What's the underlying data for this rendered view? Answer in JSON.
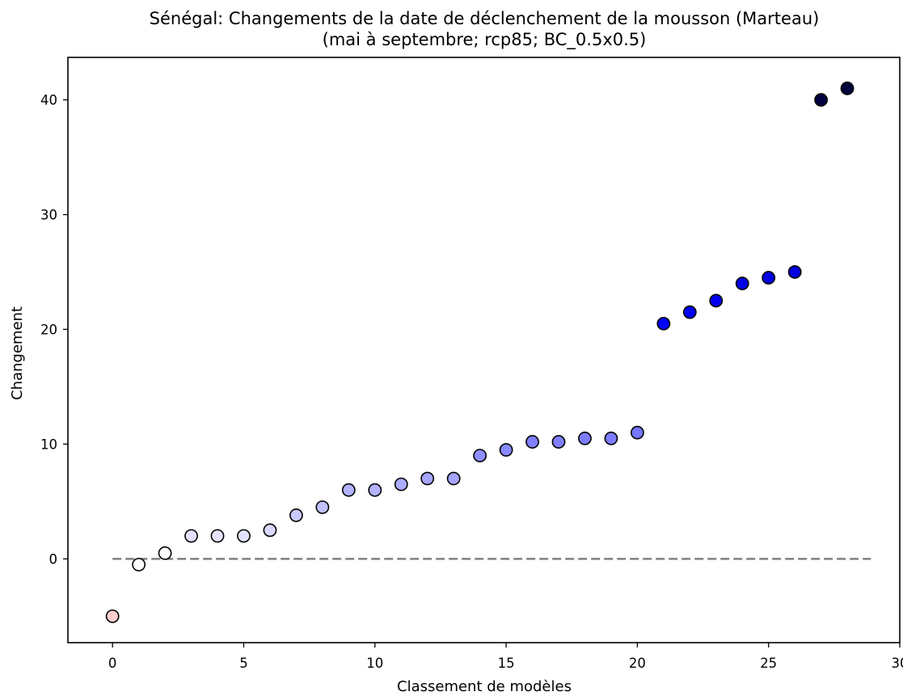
{
  "chart_data": {
    "type": "scatter",
    "title": "Sénégal: Changements de la date de déclenchement de la mousson (Marteau)",
    "subtitle": "(mai à septembre; rcp85; BC_0.5x0.5)",
    "xlabel": "Classement de modèles",
    "ylabel": "Changement",
    "xlim": [
      -1.7,
      30.0
    ],
    "ylim": [
      -7.3,
      43.7
    ],
    "xticks": [
      0,
      5,
      10,
      15,
      20,
      25,
      30
    ],
    "yticks": [
      0,
      10,
      20,
      30,
      40
    ],
    "grid": false,
    "reference_line": {
      "y": 0,
      "x_from": 0,
      "x_to": 28.9,
      "style": "dashed",
      "color": "#808080"
    },
    "points": [
      {
        "x": 0,
        "y": -5.0,
        "color": "#ffd0d0"
      },
      {
        "x": 1,
        "y": -0.5,
        "color": "#ffffff"
      },
      {
        "x": 2,
        "y": 0.5,
        "color": "#ffffff"
      },
      {
        "x": 3,
        "y": 2.0,
        "color": "#e3e3ff"
      },
      {
        "x": 4,
        "y": 2.0,
        "color": "#e3e3ff"
      },
      {
        "x": 5,
        "y": 2.0,
        "color": "#e3e3ff"
      },
      {
        "x": 6,
        "y": 2.5,
        "color": "#dadaff"
      },
      {
        "x": 7,
        "y": 3.8,
        "color": "#cacaff"
      },
      {
        "x": 8,
        "y": 4.5,
        "color": "#c2c2ff"
      },
      {
        "x": 9,
        "y": 6.0,
        "color": "#b2b2ff"
      },
      {
        "x": 10,
        "y": 6.0,
        "color": "#b2b2ff"
      },
      {
        "x": 11,
        "y": 6.5,
        "color": "#acacff"
      },
      {
        "x": 12,
        "y": 7.0,
        "color": "#a6a6ff"
      },
      {
        "x": 13,
        "y": 7.0,
        "color": "#a6a6ff"
      },
      {
        "x": 14,
        "y": 9.0,
        "color": "#8e8eff"
      },
      {
        "x": 15,
        "y": 9.5,
        "color": "#8888ff"
      },
      {
        "x": 16,
        "y": 10.2,
        "color": "#8080ff"
      },
      {
        "x": 17,
        "y": 10.2,
        "color": "#8080ff"
      },
      {
        "x": 18,
        "y": 10.5,
        "color": "#7c7cff"
      },
      {
        "x": 19,
        "y": 10.5,
        "color": "#7c7cff"
      },
      {
        "x": 20,
        "y": 11.0,
        "color": "#7676ff"
      },
      {
        "x": 21,
        "y": 20.5,
        "color": "#0000ff"
      },
      {
        "x": 22,
        "y": 21.5,
        "color": "#0000f6"
      },
      {
        "x": 23,
        "y": 22.5,
        "color": "#0000ee"
      },
      {
        "x": 24,
        "y": 24.0,
        "color": "#0000e6"
      },
      {
        "x": 25,
        "y": 24.5,
        "color": "#0000e2"
      },
      {
        "x": 26,
        "y": 25.0,
        "color": "#0000de"
      },
      {
        "x": 27,
        "y": 40.0,
        "color": "#000040"
      },
      {
        "x": 28,
        "y": 41.0,
        "color": "#00003a"
      }
    ]
  }
}
